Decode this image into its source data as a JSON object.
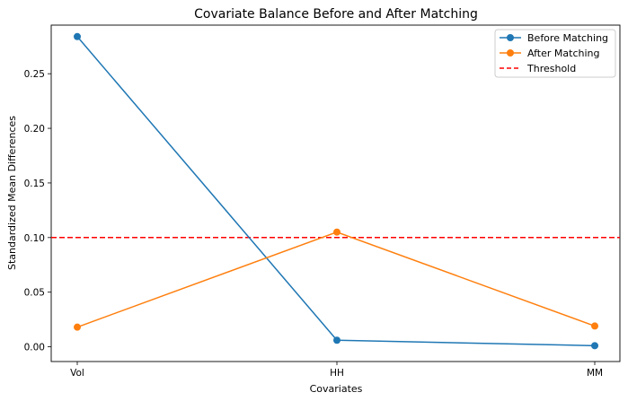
{
  "chart_data": {
    "type": "line",
    "title": "Covariate Balance Before and After Matching",
    "xlabel": "Covariates",
    "ylabel": "Standardized Mean Differences",
    "categories": [
      "Vol",
      "HH",
      "MM"
    ],
    "ylim": [
      -0.0135,
      0.2945
    ],
    "yticks": [
      0.0,
      0.05,
      0.1,
      0.15,
      0.2,
      0.25
    ],
    "ytick_labels": [
      "0.00",
      "0.05",
      "0.10",
      "0.15",
      "0.20",
      "0.25"
    ],
    "grid": false,
    "legend_position": "top-right",
    "series": [
      {
        "name": "Before Matching",
        "values": [
          0.284,
          0.006,
          0.001
        ],
        "color": "#1f77b4",
        "marker": "circle"
      },
      {
        "name": "After Matching",
        "values": [
          0.018,
          0.105,
          0.019
        ],
        "color": "#ff7f0e",
        "marker": "circle"
      }
    ],
    "reference_lines": [
      {
        "name": "Threshold",
        "y": 0.1,
        "color": "#ff0000",
        "style": "dashed"
      }
    ]
  }
}
